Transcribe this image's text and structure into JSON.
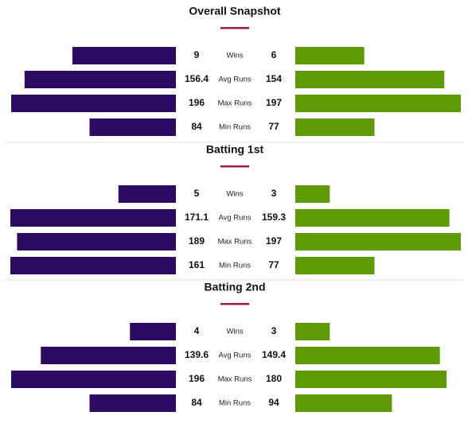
{
  "chart_data": [
    {
      "type": "bar",
      "title": "Overall Snapshot",
      "categories": [
        "Wins",
        "Avg Runs",
        "Max Runs",
        "Min Runs"
      ],
      "series": [
        {
          "values": [
            9,
            156.4,
            196,
            84
          ]
        },
        {
          "values": [
            6,
            154,
            197,
            77
          ]
        }
      ],
      "value_labels": [
        [
          "9",
          "156.4",
          "196",
          "84"
        ],
        [
          "6",
          "154",
          "197",
          "77"
        ]
      ]
    },
    {
      "type": "bar",
      "title": "Batting 1st",
      "categories": [
        "Wins",
        "Avg Runs",
        "Max Runs",
        "Min Runs"
      ],
      "series": [
        {
          "values": [
            5,
            171.1,
            189,
            161
          ]
        },
        {
          "values": [
            3,
            159.3,
            197,
            77
          ]
        }
      ],
      "value_labels": [
        [
          "5",
          "171.1",
          "189",
          "161"
        ],
        [
          "3",
          "159.3",
          "197",
          "77"
        ]
      ]
    },
    {
      "type": "bar",
      "title": "Batting 2nd",
      "categories": [
        "Wins",
        "Avg Runs",
        "Max Runs",
        "Min Runs"
      ],
      "series": [
        {
          "values": [
            4,
            139.6,
            196,
            84
          ]
        },
        {
          "values": [
            3,
            149.4,
            180,
            94
          ]
        }
      ],
      "value_labels": [
        [
          "4",
          "139.6",
          "196",
          "84"
        ],
        [
          "3",
          "149.4",
          "180",
          "94"
        ]
      ]
    }
  ],
  "colors": {
    "left_series": "#2d0b63",
    "right_series": "#5d9a05",
    "accent": "#a5183c",
    "divider": "#e6e6e6"
  }
}
